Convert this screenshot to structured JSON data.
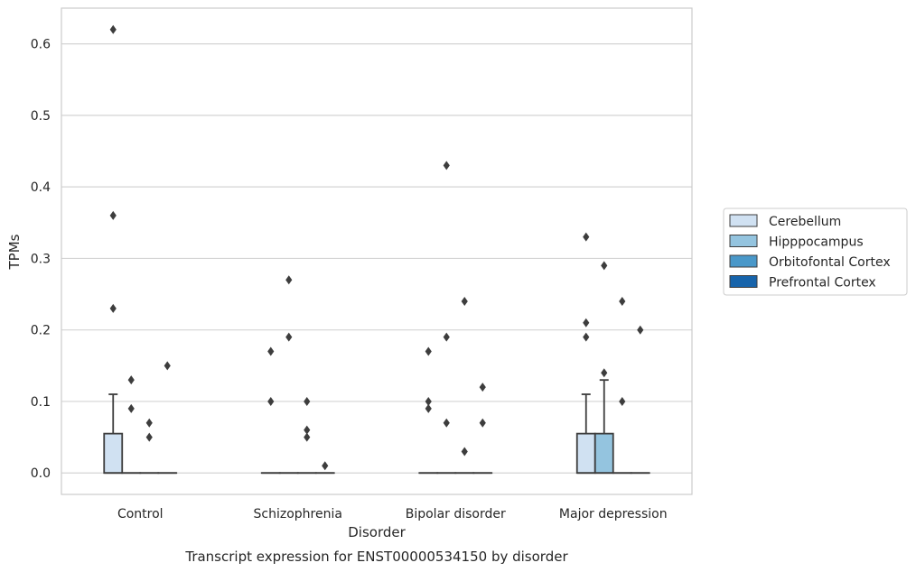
{
  "chart_data": {
    "type": "box",
    "caption": "Transcript expression for ENST00000534150 by disorder",
    "xlabel": "Disorder",
    "ylabel": "TPMs",
    "ylim": [
      -0.03,
      0.65
    ],
    "yticks": [
      "0.0",
      "0.1",
      "0.2",
      "0.3",
      "0.4",
      "0.5",
      "0.6"
    ],
    "ytick_values": [
      0.0,
      0.1,
      0.2,
      0.3,
      0.4,
      0.5,
      0.6
    ],
    "grid": "horizontal",
    "legend_position": "right",
    "categories": [
      "Control",
      "Schizophrenia",
      "Bipolar disorder",
      "Major depression"
    ],
    "series": [
      {
        "name": "Cerebellum",
        "color": "#d0e1f2",
        "boxes": [
          {
            "q1": 0.0,
            "median": 0.0,
            "q3": 0.055,
            "whisker_low": 0.0,
            "whisker_high": 0.11,
            "outliers": [
              0.62,
              0.36,
              0.23
            ]
          },
          {
            "q1": 0.0,
            "median": 0.0,
            "q3": 0.0,
            "whisker_low": 0.0,
            "whisker_high": 0.0,
            "outliers": [
              0.17,
              0.1
            ]
          },
          {
            "q1": 0.0,
            "median": 0.0,
            "q3": 0.0,
            "whisker_low": 0.0,
            "whisker_high": 0.0,
            "outliers": [
              0.17,
              0.1,
              0.09
            ]
          },
          {
            "q1": 0.0,
            "median": 0.0,
            "q3": 0.055,
            "whisker_low": 0.0,
            "whisker_high": 0.11,
            "outliers": [
              0.33,
              0.21,
              0.19
            ]
          }
        ]
      },
      {
        "name": "Hipppocampus",
        "color": "#94c4df",
        "boxes": [
          {
            "q1": 0.0,
            "median": 0.0,
            "q3": 0.0,
            "whisker_low": 0.0,
            "whisker_high": 0.0,
            "outliers": [
              0.13,
              0.09
            ]
          },
          {
            "q1": 0.0,
            "median": 0.0,
            "q3": 0.0,
            "whisker_low": 0.0,
            "whisker_high": 0.0,
            "outliers": [
              0.27,
              0.19
            ]
          },
          {
            "q1": 0.0,
            "median": 0.0,
            "q3": 0.0,
            "whisker_low": 0.0,
            "whisker_high": 0.0,
            "outliers": [
              0.43,
              0.19,
              0.07
            ]
          },
          {
            "q1": 0.0,
            "median": 0.0,
            "q3": 0.055,
            "whisker_low": 0.0,
            "whisker_high": 0.13,
            "outliers": [
              0.29,
              0.14
            ]
          }
        ]
      },
      {
        "name": "Orbitofontal Cortex",
        "color": "#4a98c9",
        "boxes": [
          {
            "q1": 0.0,
            "median": 0.0,
            "q3": 0.0,
            "whisker_low": 0.0,
            "whisker_high": 0.0,
            "outliers": [
              0.07,
              0.05
            ]
          },
          {
            "q1": 0.0,
            "median": 0.0,
            "q3": 0.0,
            "whisker_low": 0.0,
            "whisker_high": 0.0,
            "outliers": [
              0.1,
              0.06,
              0.05
            ]
          },
          {
            "q1": 0.0,
            "median": 0.0,
            "q3": 0.0,
            "whisker_low": 0.0,
            "whisker_high": 0.0,
            "outliers": [
              0.24,
              0.03
            ]
          },
          {
            "q1": 0.0,
            "median": 0.0,
            "q3": 0.0,
            "whisker_low": 0.0,
            "whisker_high": 0.0,
            "outliers": [
              0.24,
              0.1
            ]
          }
        ]
      },
      {
        "name": "Prefrontal Cortex",
        "color": "#1764ab",
        "boxes": [
          {
            "q1": 0.0,
            "median": 0.0,
            "q3": 0.0,
            "whisker_low": 0.0,
            "whisker_high": 0.0,
            "outliers": [
              0.15
            ]
          },
          {
            "q1": 0.0,
            "median": 0.0,
            "q3": 0.0,
            "whisker_low": 0.0,
            "whisker_high": 0.0,
            "outliers": [
              0.01
            ]
          },
          {
            "q1": 0.0,
            "median": 0.0,
            "q3": 0.0,
            "whisker_low": 0.0,
            "whisker_high": 0.0,
            "outliers": [
              0.12,
              0.07
            ]
          },
          {
            "q1": 0.0,
            "median": 0.0,
            "q3": 0.0,
            "whisker_low": 0.0,
            "whisker_high": 0.0,
            "outliers": [
              0.2
            ]
          }
        ]
      }
    ]
  }
}
